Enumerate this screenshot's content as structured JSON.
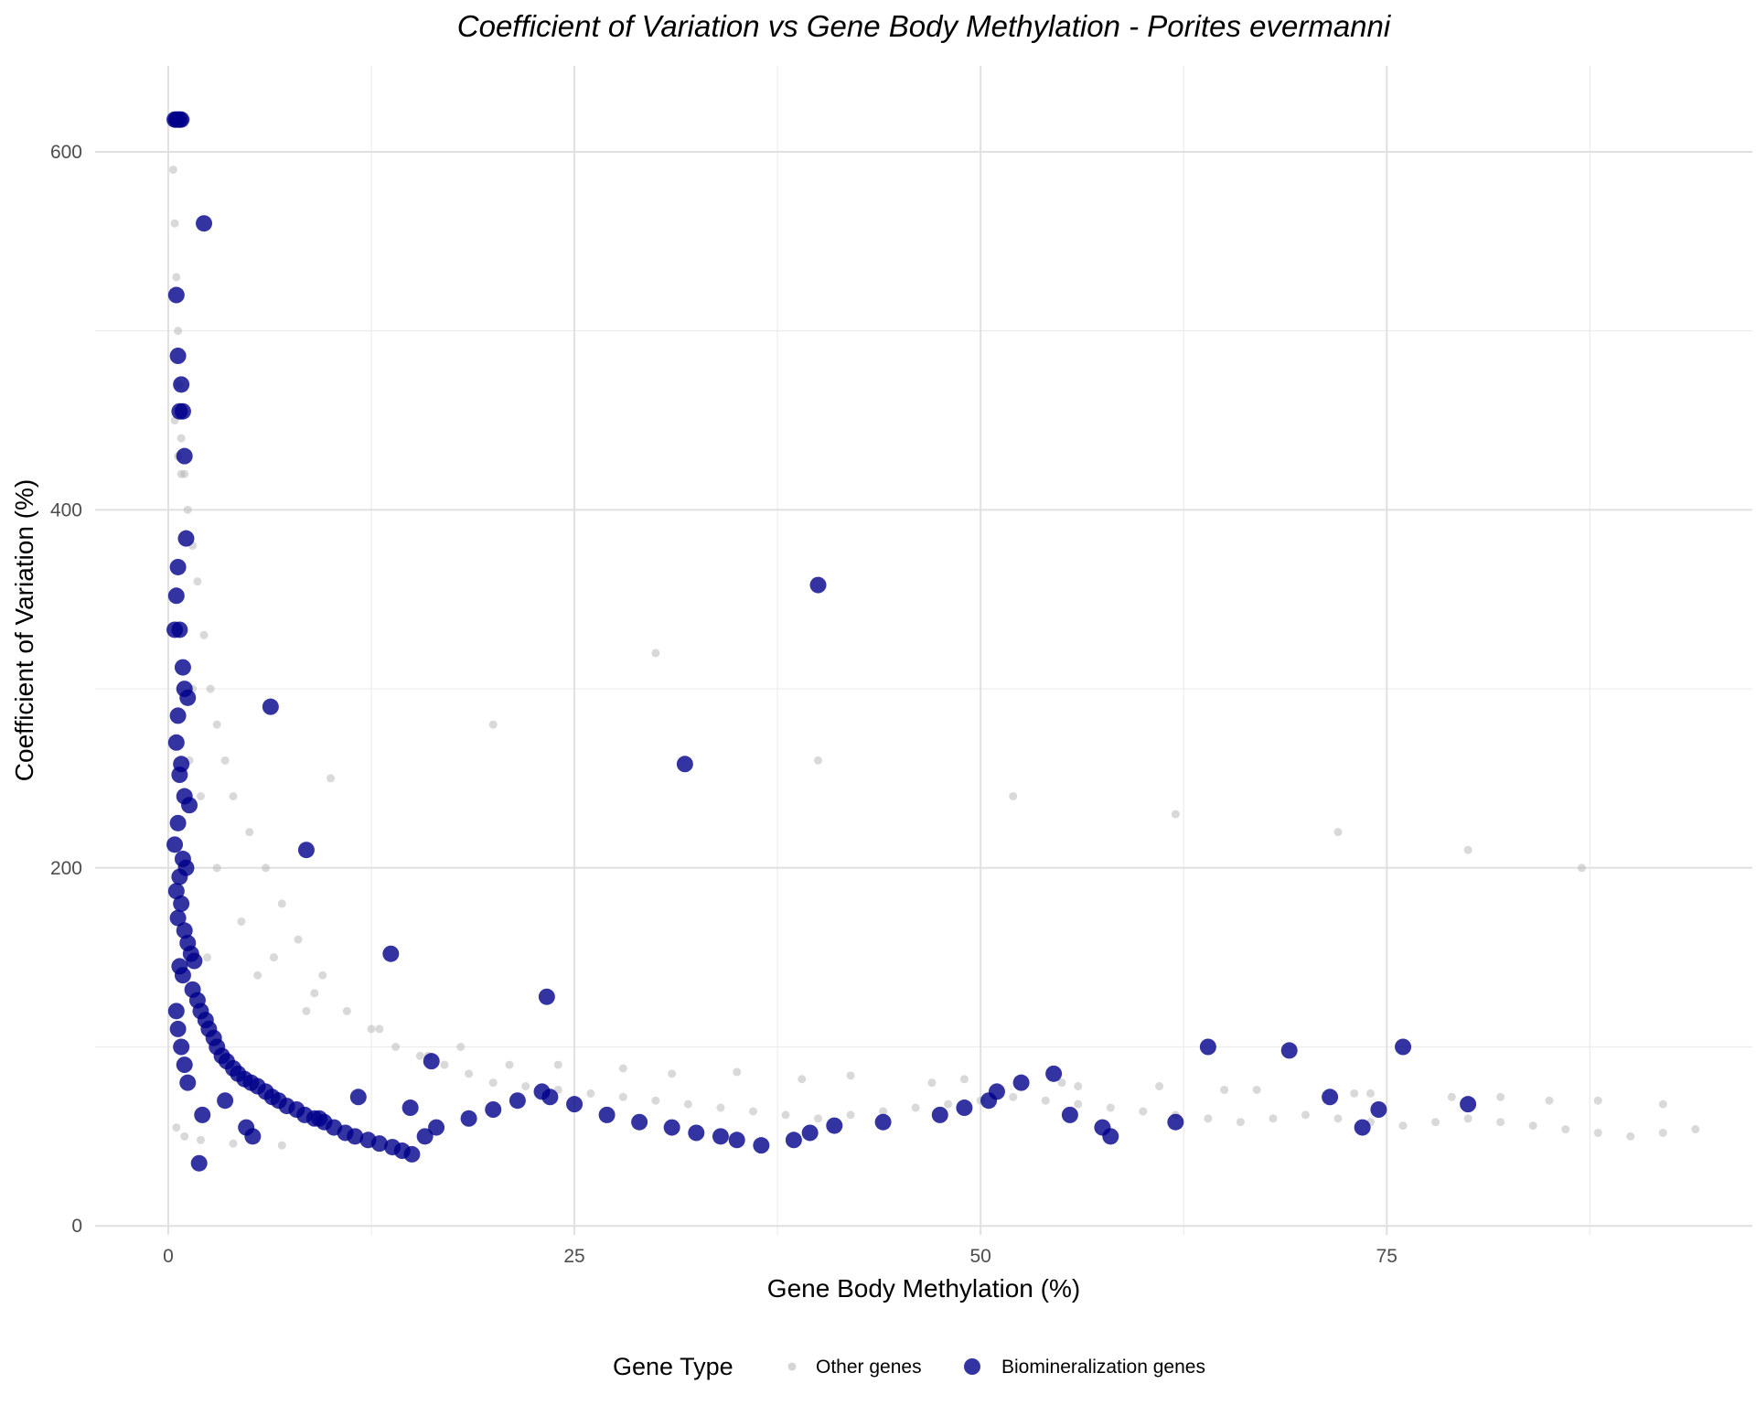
{
  "chart_data": {
    "type": "scatter",
    "title": "Coefficient of Variation vs Gene Body Methylation - Porites evermanni",
    "xlabel": "Gene Body Methylation (%)",
    "ylabel": "Coefficient of Variation (%)",
    "xlim": [
      -4.5,
      97.5
    ],
    "ylim": [
      -5,
      648
    ],
    "x_ticks": [
      0,
      25,
      50,
      75
    ],
    "y_ticks": [
      0,
      200,
      400,
      600
    ],
    "x_tick_labels": [
      "0",
      "25",
      "50",
      "75"
    ],
    "y_tick_labels": [
      "0",
      "200",
      "400",
      "600"
    ],
    "grid": true,
    "legend": {
      "title": "Gene Type",
      "position": "bottom",
      "entries": [
        "Other genes",
        "Biomineralization genes"
      ]
    },
    "series": [
      {
        "name": "Other genes",
        "color": "#b3b3b3",
        "note_points": "dense cloud (~several thousand genes); representative sample",
        "x": [
          0.2,
          0.3,
          0.4,
          0.5,
          0.6,
          0.7,
          0.8,
          1.0,
          1.2,
          1.5,
          1.8,
          2.2,
          2.6,
          3.0,
          3.5,
          4.0,
          5.0,
          6.0,
          7.0,
          8.0,
          9.5,
          11,
          12.5,
          14,
          15.5,
          17,
          18.5,
          20,
          22,
          24,
          26,
          28,
          30,
          32,
          34,
          36,
          38,
          40,
          42,
          44,
          46,
          48,
          50,
          52,
          54,
          56,
          58,
          60,
          62,
          64,
          66,
          68,
          70,
          72,
          74,
          76,
          78,
          80,
          82,
          84,
          86,
          88,
          90,
          92,
          94,
          0.3,
          0.5,
          0.7,
          0.9,
          1.1,
          0.4,
          0.6,
          0.8,
          1.3,
          2.0,
          3.0,
          4.5,
          6.5,
          9,
          13,
          18,
          24,
          31,
          39,
          47,
          56,
          65,
          73,
          82,
          88,
          92,
          2.4,
          5.5,
          8.5,
          16,
          21,
          28,
          35,
          42,
          49,
          55,
          61,
          67,
          74,
          79,
          85,
          1.5,
          10,
          20,
          30,
          40,
          52,
          62,
          72,
          80,
          87,
          0.5,
          1.0,
          2.0,
          4.0,
          7.0
        ],
        "y": [
          618,
          590,
          560,
          530,
          500,
          470,
          440,
          420,
          400,
          380,
          360,
          330,
          300,
          280,
          260,
          240,
          220,
          200,
          180,
          160,
          140,
          120,
          110,
          100,
          95,
          90,
          85,
          80,
          78,
          76,
          74,
          72,
          70,
          68,
          66,
          64,
          62,
          60,
          62,
          64,
          66,
          68,
          70,
          72,
          70,
          68,
          66,
          64,
          62,
          60,
          58,
          60,
          62,
          60,
          58,
          56,
          58,
          60,
          58,
          56,
          54,
          52,
          50,
          52,
          54,
          618,
          618,
          618,
          618,
          618,
          450,
          430,
          420,
          260,
          240,
          200,
          170,
          150,
          130,
          110,
          100,
          90,
          85,
          82,
          80,
          78,
          76,
          74,
          72,
          70,
          68,
          150,
          140,
          120,
          95,
          90,
          88,
          86,
          84,
          82,
          80,
          78,
          76,
          74,
          72,
          70,
          300,
          250,
          280,
          320,
          260,
          240,
          230,
          220,
          210,
          200,
          55,
          50,
          48,
          46,
          45
        ]
      },
      {
        "name": "Biomineralization genes",
        "color": "#00008b",
        "x": [
          0.4,
          0.5,
          0.6,
          0.7,
          0.8,
          0.5,
          0.6,
          0.9,
          0.7,
          0.8,
          1.0,
          1.1,
          0.6,
          0.5,
          0.4,
          0.7,
          0.9,
          1.0,
          1.2,
          0.6,
          0.5,
          0.8,
          0.7,
          1.0,
          1.3,
          0.6,
          0.4,
          0.9,
          1.1,
          0.7,
          0.5,
          0.8,
          0.6,
          1.0,
          1.2,
          1.4,
          1.6,
          0.7,
          0.9,
          1.5,
          1.8,
          2.0,
          2.3,
          2.5,
          2.8,
          3.0,
          3.3,
          3.6,
          4.0,
          4.3,
          4.7,
          5.1,
          5.5,
          6.0,
          6.4,
          6.8,
          7.3,
          7.9,
          8.4,
          9.0,
          9.6,
          10.2,
          10.9,
          11.5,
          12.3,
          13.0,
          13.8,
          14.4,
          15.0,
          15.8,
          16.5,
          18.5,
          20.0,
          21.5,
          23.0,
          23.5,
          25.0,
          27.0,
          29.0,
          31.0,
          32.5,
          34.0,
          35.0,
          36.5,
          38.5,
          39.5,
          41.0,
          44.0,
          47.5,
          49.0,
          50.5,
          51.0,
          52.5,
          54.5,
          55.5,
          57.5,
          58.0,
          62.0,
          64.0,
          69.0,
          71.5,
          73.5,
          74.5,
          76.0,
          80.0,
          2.2,
          6.3,
          8.5,
          13.7,
          23.3,
          31.8,
          40.0,
          0.5,
          0.6,
          0.8,
          1.0,
          1.2,
          2.1,
          1.9,
          3.5,
          4.8,
          5.2,
          9.3,
          11.7,
          14.9,
          16.2
        ],
        "y": [
          618,
          618,
          618,
          618,
          618,
          520,
          486,
          455,
          455,
          470,
          430,
          384,
          368,
          352,
          333,
          333,
          312,
          300,
          295,
          285,
          270,
          258,
          252,
          240,
          235,
          225,
          213,
          205,
          200,
          195,
          187,
          180,
          172,
          165,
          158,
          152,
          148,
          145,
          140,
          132,
          126,
          120,
          115,
          110,
          105,
          100,
          95,
          92,
          88,
          85,
          82,
          80,
          78,
          75,
          72,
          70,
          67,
          65,
          62,
          60,
          58,
          55,
          52,
          50,
          48,
          46,
          44,
          42,
          40,
          50,
          55,
          60,
          65,
          70,
          75,
          72,
          68,
          62,
          58,
          55,
          52,
          50,
          48,
          45,
          48,
          52,
          56,
          58,
          62,
          66,
          70,
          75,
          80,
          85,
          62,
          55,
          50,
          58,
          100,
          98,
          72,
          55,
          65,
          100,
          68,
          560,
          290,
          210,
          152,
          128,
          258,
          358,
          120,
          110,
          100,
          90,
          80,
          62,
          35,
          70,
          55,
          50,
          60,
          72,
          66,
          92
        ]
      }
    ]
  }
}
